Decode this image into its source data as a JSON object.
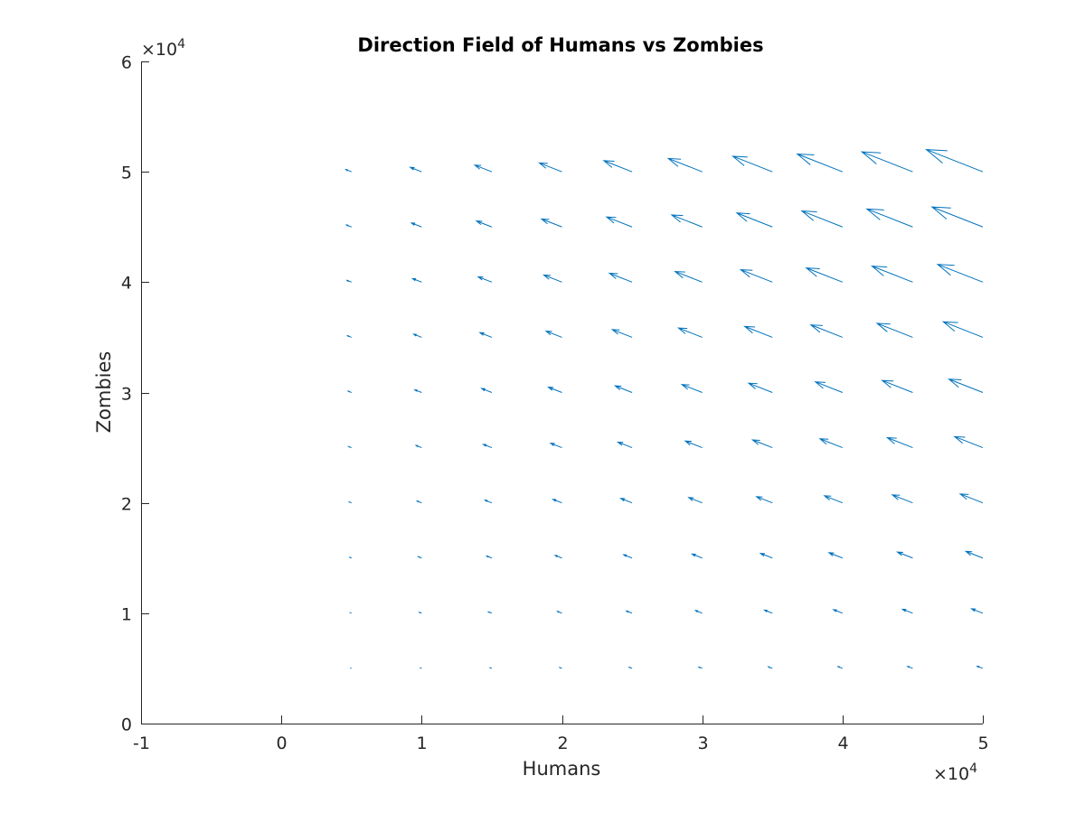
{
  "chart_data": {
    "type": "quiver",
    "title": "Direction Field of Humans vs Zombies",
    "xlabel": "Humans",
    "ylabel": "Zombies",
    "xlim": [
      -10000,
      50000
    ],
    "ylim": [
      0,
      60000
    ],
    "x_ticks": [
      -10000,
      0,
      10000,
      20000,
      30000,
      40000,
      50000
    ],
    "y_ticks": [
      0,
      10000,
      20000,
      30000,
      40000,
      50000,
      60000
    ],
    "x_tick_labels": [
      "-1",
      "0",
      "1",
      "2",
      "3",
      "4",
      "5"
    ],
    "y_tick_labels": [
      "0",
      "1",
      "2",
      "3",
      "4",
      "5",
      "6"
    ],
    "x_exponent_label": "×10",
    "x_exponent_power": "4",
    "y_exponent_label": "×10",
    "y_exponent_power": "4",
    "arrow_color": "#0072bd",
    "grid": false,
    "x_values": [
      5000,
      10000,
      15000,
      20000,
      25000,
      30000,
      35000,
      40000,
      45000,
      50000
    ],
    "y_values": [
      5000,
      10000,
      15000,
      20000,
      25000,
      30000,
      35000,
      40000,
      45000,
      50000
    ],
    "arrows": [
      {
        "x": 5000,
        "y": 5000,
        "u": -80,
        "v": 40
      },
      {
        "x": 10000,
        "y": 5000,
        "u": -160,
        "v": 80
      },
      {
        "x": 15000,
        "y": 5000,
        "u": -240,
        "v": 120
      },
      {
        "x": 20000,
        "y": 5000,
        "u": -320,
        "v": 160
      },
      {
        "x": 25000,
        "y": 5000,
        "u": -400,
        "v": 200
      },
      {
        "x": 30000,
        "y": 5000,
        "u": -480,
        "v": 240
      },
      {
        "x": 35000,
        "y": 5000,
        "u": -560,
        "v": 280
      },
      {
        "x": 40000,
        "y": 5000,
        "u": -640,
        "v": 320
      },
      {
        "x": 45000,
        "y": 5000,
        "u": -720,
        "v": 360
      },
      {
        "x": 50000,
        "y": 5000,
        "u": -800,
        "v": 400
      },
      {
        "x": 5000,
        "y": 10000,
        "u": -160,
        "v": 80
      },
      {
        "x": 10000,
        "y": 10000,
        "u": -320,
        "v": 160
      },
      {
        "x": 15000,
        "y": 10000,
        "u": -480,
        "v": 240
      },
      {
        "x": 20000,
        "y": 10000,
        "u": -640,
        "v": 320
      },
      {
        "x": 25000,
        "y": 10000,
        "u": -800,
        "v": 400
      },
      {
        "x": 30000,
        "y": 10000,
        "u": -960,
        "v": 480
      },
      {
        "x": 35000,
        "y": 10000,
        "u": -1120,
        "v": 560
      },
      {
        "x": 40000,
        "y": 10000,
        "u": -1280,
        "v": 640
      },
      {
        "x": 45000,
        "y": 10000,
        "u": -1440,
        "v": 720
      },
      {
        "x": 50000,
        "y": 10000,
        "u": -1600,
        "v": 800
      },
      {
        "x": 5000,
        "y": 15000,
        "u": -240,
        "v": 120
      },
      {
        "x": 10000,
        "y": 15000,
        "u": -480,
        "v": 240
      },
      {
        "x": 15000,
        "y": 15000,
        "u": -720,
        "v": 360
      },
      {
        "x": 20000,
        "y": 15000,
        "u": -960,
        "v": 480
      },
      {
        "x": 25000,
        "y": 15000,
        "u": -1200,
        "v": 600
      },
      {
        "x": 30000,
        "y": 15000,
        "u": -1440,
        "v": 720
      },
      {
        "x": 35000,
        "y": 15000,
        "u": -1680,
        "v": 840
      },
      {
        "x": 40000,
        "y": 15000,
        "u": -1920,
        "v": 960
      },
      {
        "x": 45000,
        "y": 15000,
        "u": -2160,
        "v": 1080
      },
      {
        "x": 50000,
        "y": 15000,
        "u": -2400,
        "v": 1200
      },
      {
        "x": 5000,
        "y": 20000,
        "u": -320,
        "v": 160
      },
      {
        "x": 10000,
        "y": 20000,
        "u": -640,
        "v": 320
      },
      {
        "x": 15000,
        "y": 20000,
        "u": -960,
        "v": 480
      },
      {
        "x": 20000,
        "y": 20000,
        "u": -1280,
        "v": 640
      },
      {
        "x": 25000,
        "y": 20000,
        "u": -1600,
        "v": 800
      },
      {
        "x": 30000,
        "y": 20000,
        "u": -1920,
        "v": 960
      },
      {
        "x": 35000,
        "y": 20000,
        "u": -2240,
        "v": 1120
      },
      {
        "x": 40000,
        "y": 20000,
        "u": -2560,
        "v": 1280
      },
      {
        "x": 45000,
        "y": 20000,
        "u": -2880,
        "v": 1440
      },
      {
        "x": 50000,
        "y": 20000,
        "u": -3200,
        "v": 1600
      },
      {
        "x": 5000,
        "y": 25000,
        "u": -400,
        "v": 200
      },
      {
        "x": 10000,
        "y": 25000,
        "u": -800,
        "v": 400
      },
      {
        "x": 15000,
        "y": 25000,
        "u": -1200,
        "v": 600
      },
      {
        "x": 20000,
        "y": 25000,
        "u": -1600,
        "v": 800
      },
      {
        "x": 25000,
        "y": 25000,
        "u": -2000,
        "v": 1000
      },
      {
        "x": 30000,
        "y": 25000,
        "u": -2400,
        "v": 1200
      },
      {
        "x": 35000,
        "y": 25000,
        "u": -2800,
        "v": 1400
      },
      {
        "x": 40000,
        "y": 25000,
        "u": -3200,
        "v": 1600
      },
      {
        "x": 45000,
        "y": 25000,
        "u": -3600,
        "v": 1800
      },
      {
        "x": 50000,
        "y": 25000,
        "u": -4000,
        "v": 2000
      },
      {
        "x": 5000,
        "y": 30000,
        "u": -480,
        "v": 240
      },
      {
        "x": 10000,
        "y": 30000,
        "u": -960,
        "v": 480
      },
      {
        "x": 15000,
        "y": 30000,
        "u": -1440,
        "v": 720
      },
      {
        "x": 20000,
        "y": 30000,
        "u": -1920,
        "v": 960
      },
      {
        "x": 25000,
        "y": 30000,
        "u": -2400,
        "v": 1200
      },
      {
        "x": 30000,
        "y": 30000,
        "u": -2880,
        "v": 1440
      },
      {
        "x": 35000,
        "y": 30000,
        "u": -3360,
        "v": 1680
      },
      {
        "x": 40000,
        "y": 30000,
        "u": -3840,
        "v": 1920
      },
      {
        "x": 45000,
        "y": 30000,
        "u": -4320,
        "v": 2160
      },
      {
        "x": 50000,
        "y": 30000,
        "u": -4800,
        "v": 2400
      },
      {
        "x": 5000,
        "y": 35000,
        "u": -560,
        "v": 280
      },
      {
        "x": 10000,
        "y": 35000,
        "u": -1120,
        "v": 560
      },
      {
        "x": 15000,
        "y": 35000,
        "u": -1680,
        "v": 840
      },
      {
        "x": 20000,
        "y": 35000,
        "u": -2240,
        "v": 1120
      },
      {
        "x": 25000,
        "y": 35000,
        "u": -2800,
        "v": 1400
      },
      {
        "x": 30000,
        "y": 35000,
        "u": -3360,
        "v": 1680
      },
      {
        "x": 35000,
        "y": 35000,
        "u": -3920,
        "v": 1960
      },
      {
        "x": 40000,
        "y": 35000,
        "u": -4480,
        "v": 2240
      },
      {
        "x": 45000,
        "y": 35000,
        "u": -5040,
        "v": 2520
      },
      {
        "x": 50000,
        "y": 35000,
        "u": -5600,
        "v": 2800
      },
      {
        "x": 5000,
        "y": 40000,
        "u": -640,
        "v": 320
      },
      {
        "x": 10000,
        "y": 40000,
        "u": -1280,
        "v": 640
      },
      {
        "x": 15000,
        "y": 40000,
        "u": -1920,
        "v": 960
      },
      {
        "x": 20000,
        "y": 40000,
        "u": -2560,
        "v": 1280
      },
      {
        "x": 25000,
        "y": 40000,
        "u": -3200,
        "v": 1600
      },
      {
        "x": 30000,
        "y": 40000,
        "u": -3840,
        "v": 1920
      },
      {
        "x": 35000,
        "y": 40000,
        "u": -4480,
        "v": 2240
      },
      {
        "x": 40000,
        "y": 40000,
        "u": -5120,
        "v": 2560
      },
      {
        "x": 45000,
        "y": 40000,
        "u": -5760,
        "v": 2880
      },
      {
        "x": 50000,
        "y": 40000,
        "u": -6400,
        "v": 3200
      },
      {
        "x": 5000,
        "y": 45000,
        "u": -720,
        "v": 360
      },
      {
        "x": 10000,
        "y": 45000,
        "u": -1440,
        "v": 720
      },
      {
        "x": 15000,
        "y": 45000,
        "u": -2160,
        "v": 1080
      },
      {
        "x": 20000,
        "y": 45000,
        "u": -2880,
        "v": 1440
      },
      {
        "x": 25000,
        "y": 45000,
        "u": -3600,
        "v": 1800
      },
      {
        "x": 30000,
        "y": 45000,
        "u": -4320,
        "v": 2160
      },
      {
        "x": 35000,
        "y": 45000,
        "u": -5040,
        "v": 2520
      },
      {
        "x": 40000,
        "y": 45000,
        "u": -5760,
        "v": 2880
      },
      {
        "x": 45000,
        "y": 45000,
        "u": -6480,
        "v": 3240
      },
      {
        "x": 50000,
        "y": 45000,
        "u": -7200,
        "v": 3600
      },
      {
        "x": 5000,
        "y": 50000,
        "u": -800,
        "v": 400
      },
      {
        "x": 10000,
        "y": 50000,
        "u": -1600,
        "v": 800
      },
      {
        "x": 15000,
        "y": 50000,
        "u": -2400,
        "v": 1200
      },
      {
        "x": 20000,
        "y": 50000,
        "u": -3200,
        "v": 1600
      },
      {
        "x": 25000,
        "y": 50000,
        "u": -4000,
        "v": 2000
      },
      {
        "x": 30000,
        "y": 50000,
        "u": -4800,
        "v": 2400
      },
      {
        "x": 35000,
        "y": 50000,
        "u": -5600,
        "v": 2800
      },
      {
        "x": 40000,
        "y": 50000,
        "u": -6400,
        "v": 3200
      },
      {
        "x": 45000,
        "y": 50000,
        "u": -7200,
        "v": 3600
      },
      {
        "x": 50000,
        "y": 50000,
        "u": -8000,
        "v": 4000
      }
    ]
  }
}
